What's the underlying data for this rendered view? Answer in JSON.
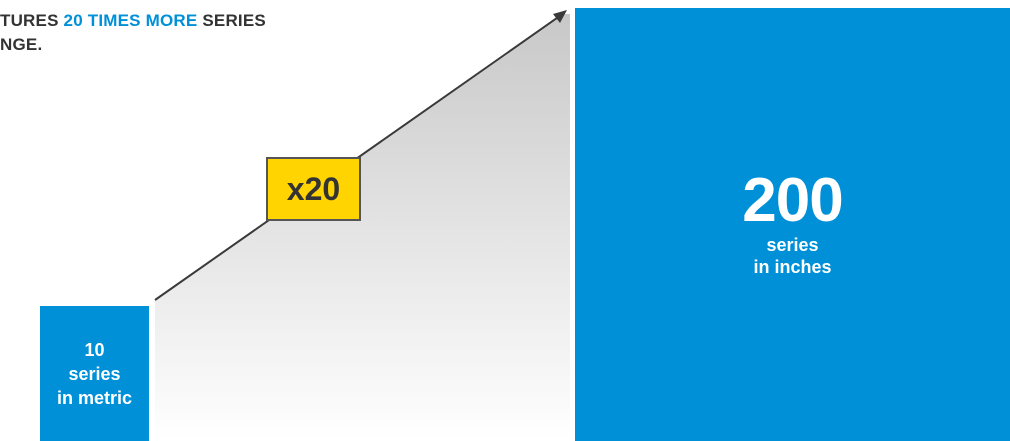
{
  "headline": {
    "prefix": "TURES ",
    "accent": "20 TIMES MORE",
    "suffix": " SERIES",
    "line2": "NGE."
  },
  "multiplier_badge": "x20",
  "metric_box": {
    "count": "10",
    "unit": "series",
    "system": "in metric"
  },
  "inch_box": {
    "count": "200",
    "unit": "series",
    "system": "in inches"
  },
  "colors": {
    "blue": "#0090d8",
    "yellow": "#ffd400",
    "text_dark": "#333333",
    "line": "#3a3a3a"
  }
}
